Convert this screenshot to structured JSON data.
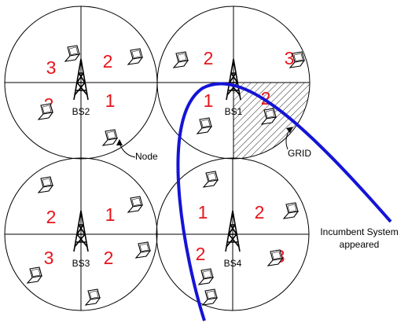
{
  "cells": [
    {
      "label": "BS2",
      "sectors": [
        "3",
        "2",
        "2",
        "1"
      ]
    },
    {
      "label": "BS1",
      "sectors": [
        "2",
        "3",
        "1",
        "2"
      ]
    },
    {
      "label": "BS3",
      "sectors": [
        "2",
        "1",
        "3",
        "2"
      ]
    },
    {
      "label": "BS4",
      "sectors": [
        "1",
        "2",
        "2",
        "3"
      ]
    }
  ],
  "labels": {
    "node": "Node",
    "grid": "GRID",
    "incumbent": [
      "Incumbent System",
      "appeared"
    ]
  }
}
